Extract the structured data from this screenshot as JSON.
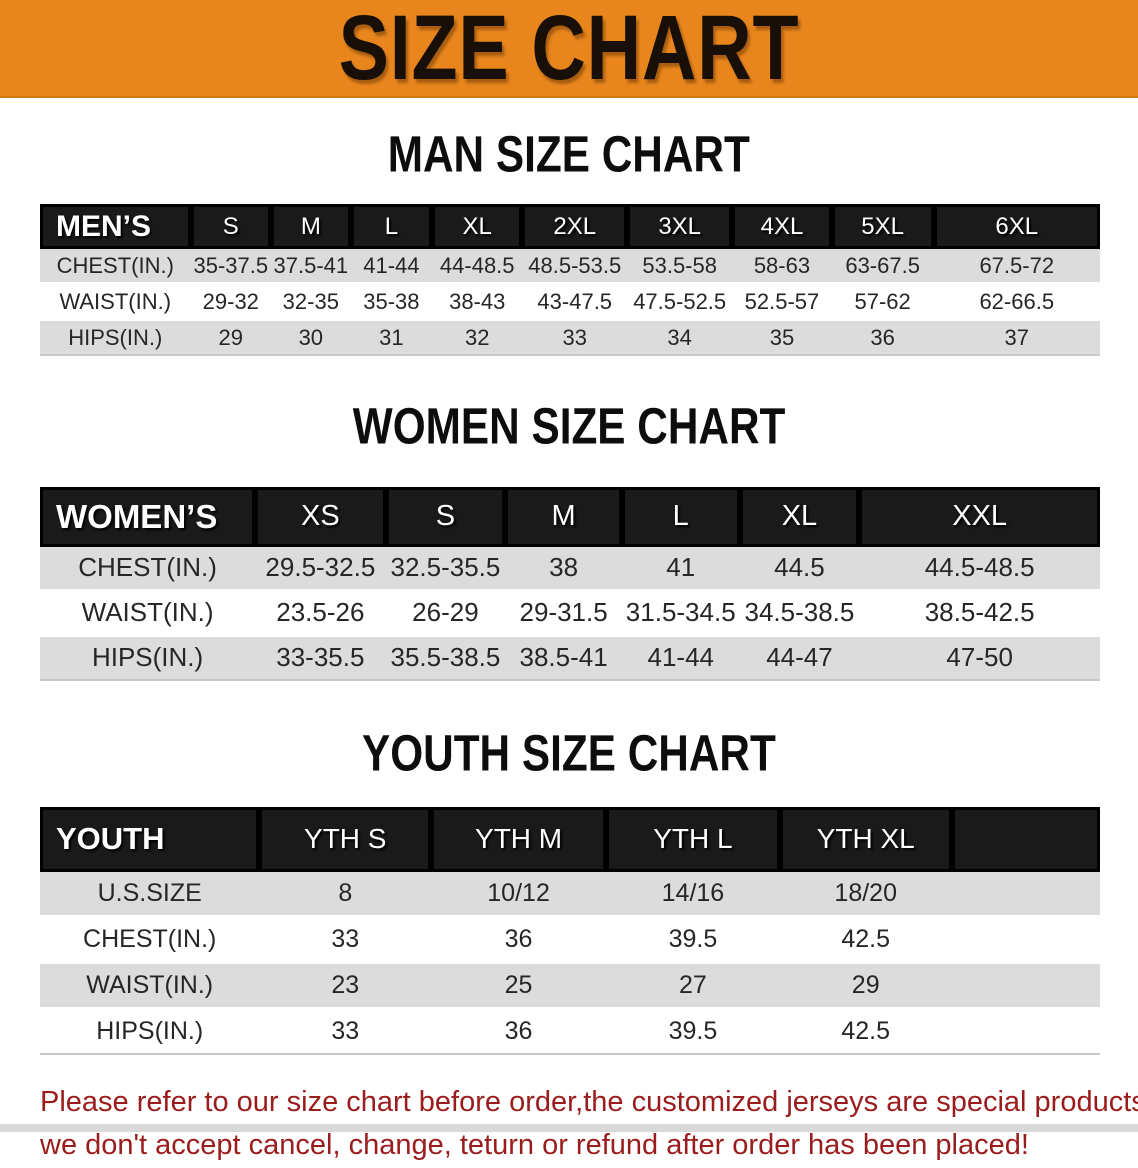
{
  "banner": {
    "title": "SIZE CHART"
  },
  "sections": [
    {
      "heading": "MAN SIZE CHART",
      "table": {
        "header": [
          "MEN’S",
          "S",
          "M",
          "L",
          "XL",
          "2XL",
          "3XL",
          "4XL",
          "5XL",
          "6XL"
        ],
        "rows": [
          {
            "label": "CHEST(IN.)",
            "values": [
              "35-37.5",
              "37.5-41",
              "41-44",
              "44-48.5",
              "48.5-53.5",
              "53.5-58",
              "58-63",
              "63-67.5",
              "67.5-72"
            ]
          },
          {
            "label": "WAIST(IN.)",
            "values": [
              "29-32",
              "32-35",
              "35-38",
              "38-43",
              "43-47.5",
              "47.5-52.5",
              "52.5-57",
              "57-62",
              "62-66.5"
            ]
          },
          {
            "label": "HIPS(IN.)",
            "values": [
              "29",
              "30",
              "31",
              "32",
              "33",
              "34",
              "35",
              "36",
              "37"
            ]
          }
        ]
      }
    },
    {
      "heading": "WOMEN SIZE CHART",
      "table": {
        "header": [
          "WOMEN’S",
          "XS",
          "S",
          "M",
          "L",
          "XL",
          "XXL"
        ],
        "rows": [
          {
            "label": "CHEST(IN.)",
            "values": [
              "29.5-32.5",
              "32.5-35.5",
              "38",
              "41",
              "44.5",
              "44.5-48.5"
            ]
          },
          {
            "label": "WAIST(IN.)",
            "values": [
              "23.5-26",
              "26-29",
              "29-31.5",
              "31.5-34.5",
              "34.5-38.5",
              "38.5-42.5"
            ]
          },
          {
            "label": "HIPS(IN.)",
            "values": [
              "33-35.5",
              "35.5-38.5",
              "38.5-41",
              "41-44",
              "44-47",
              "47-50"
            ]
          }
        ]
      }
    },
    {
      "heading": "YOUTH SIZE CHART",
      "table": {
        "header": [
          "YOUTH",
          "YTH S",
          "YTH M",
          "YTH L",
          "YTH XL"
        ],
        "rows": [
          {
            "label": "U.S.SIZE",
            "values": [
              "8",
              "10/12",
              "14/16",
              "18/20"
            ]
          },
          {
            "label": "CHEST(IN.)",
            "values": [
              "33",
              "36",
              "39.5",
              "42.5"
            ]
          },
          {
            "label": "WAIST(IN.)",
            "values": [
              "23",
              "25",
              "27",
              "29"
            ]
          },
          {
            "label": "HIPS(IN.)",
            "values": [
              "33",
              "36",
              "39.5",
              "42.5"
            ]
          }
        ]
      }
    }
  ],
  "notice": {
    "line1": "Please refer to our size chart before order,the customized jerseys are special products,",
    "line2": "we don't accept cancel, change, teturn or refund after order has been placed!"
  },
  "colors": {
    "banner_orange": "#e8861d",
    "header_black": "#1a1a1a",
    "row_gray": "#dcdcdc",
    "notice_red": "#9b1c1c"
  }
}
